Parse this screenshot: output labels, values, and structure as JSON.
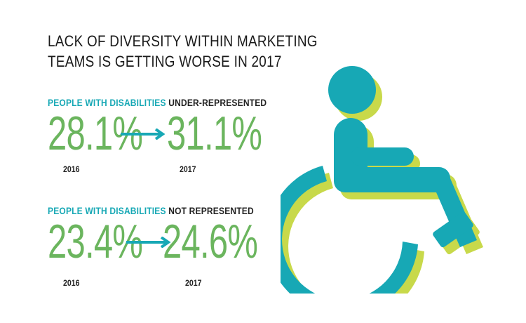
{
  "title": {
    "line1": "LACK OF DIVERSITY WITHIN MARKETING",
    "line2": "TEAMS IS GETTING WORSE IN 2017"
  },
  "colors": {
    "teal": "#17a8b5",
    "green": "#6bb55e",
    "lime": "#c8d94a"
  },
  "stats": [
    {
      "highlight": "PEOPLE WITH DISABILITIES",
      "label": "UNDER-REPRESENTED",
      "from_value": "28.1%",
      "from_year": "2016",
      "to_value": "31.1%",
      "to_year": "2017"
    },
    {
      "highlight": "PEOPLE WITH DISABILITIES",
      "label": "NOT REPRESENTED",
      "from_value": "23.4%",
      "from_year": "2016",
      "to_value": "24.6%",
      "to_year": "2017"
    }
  ],
  "icon": "wheelchair-icon"
}
